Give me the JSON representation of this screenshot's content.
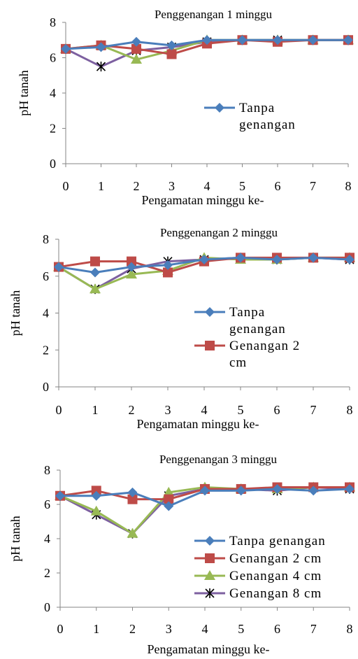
{
  "chart_data": [
    {
      "type": "line",
      "title": "Penggenangan 1 minggu",
      "xlabel": "Pengamatan minggu ke-",
      "ylabel": "pH tanah",
      "x": [
        0,
        1,
        2,
        3,
        4,
        5,
        6,
        7,
        8
      ],
      "ylim": [
        0,
        8
      ],
      "yticks": [
        0,
        2,
        4,
        6,
        8
      ],
      "grid": false,
      "legend_position": "right",
      "legend_entries": [
        "Tanpa genangan"
      ],
      "series": [
        {
          "name": "Tanpa genangan",
          "color": "#4a7ebb",
          "marker": "diamond",
          "values": [
            6.5,
            6.6,
            6.9,
            6.7,
            7.0,
            7.0,
            7.0,
            7.0,
            7.0
          ]
        },
        {
          "color": "#be4b48",
          "marker": "square",
          "values": [
            6.5,
            6.7,
            6.5,
            6.2,
            6.8,
            7.0,
            6.9,
            7.0,
            7.0
          ]
        },
        {
          "color": "#98b954",
          "marker": "triangle",
          "values": [
            6.5,
            6.7,
            5.9,
            6.4,
            7.0,
            7.0,
            7.0,
            7.0,
            7.0
          ]
        },
        {
          "color": "#7d60a0",
          "marker": "star",
          "values": [
            6.5,
            5.5,
            6.4,
            6.6,
            6.9,
            7.0,
            7.0,
            7.0,
            7.0
          ]
        }
      ]
    },
    {
      "type": "line",
      "title": "Penggenangan 2 minggu",
      "xlabel": "Pengamatan minggu ke-",
      "ylabel": "pH tanah",
      "x": [
        0,
        1,
        2,
        3,
        4,
        5,
        6,
        7,
        8
      ],
      "ylim": [
        0,
        8
      ],
      "yticks": [
        0,
        2,
        4,
        6,
        8
      ],
      "grid": false,
      "legend_position": "right",
      "legend_entries": [
        "Tanpa genangan",
        "Genangan 2 cm"
      ],
      "series": [
        {
          "name": "Tanpa genangan",
          "color": "#4a7ebb",
          "marker": "diamond",
          "values": [
            6.5,
            6.2,
            6.5,
            6.6,
            6.9,
            7.0,
            6.9,
            7.0,
            6.9
          ]
        },
        {
          "name": "Genangan 2 cm",
          "color": "#be4b48",
          "marker": "square",
          "values": [
            6.5,
            6.8,
            6.8,
            6.2,
            6.8,
            7.0,
            7.0,
            7.0,
            7.0
          ]
        },
        {
          "color": "#98b954",
          "marker": "triangle",
          "values": [
            6.5,
            5.3,
            6.1,
            6.3,
            7.0,
            6.9,
            6.9,
            7.0,
            7.0
          ]
        },
        {
          "color": "#7d60a0",
          "marker": "star",
          "values": [
            6.5,
            5.3,
            6.4,
            6.8,
            6.9,
            7.0,
            6.9,
            7.0,
            6.9
          ]
        }
      ]
    },
    {
      "type": "line",
      "title": "Penggenangan 3 minggu",
      "xlabel": "Pengamatan minggu ke-",
      "ylabel": "pH tanah",
      "x": [
        0,
        1,
        2,
        3,
        4,
        5,
        6,
        7,
        8
      ],
      "ylim": [
        0,
        8
      ],
      "yticks": [
        0,
        2,
        4,
        6,
        8
      ],
      "grid": false,
      "legend_position": "bottom-right",
      "legend_entries": [
        "Tanpa genangan",
        "Genangan 2 cm",
        "Genangan 4 cm",
        "Genangan 8 cm"
      ],
      "series": [
        {
          "name": "Tanpa genangan",
          "color": "#4a7ebb",
          "marker": "diamond",
          "values": [
            6.5,
            6.5,
            6.7,
            5.9,
            6.8,
            6.8,
            6.9,
            6.8,
            6.9
          ]
        },
        {
          "name": "Genangan 2 cm",
          "color": "#be4b48",
          "marker": "square",
          "values": [
            6.5,
            6.8,
            6.3,
            6.3,
            6.9,
            6.9,
            7.0,
            7.0,
            7.0
          ]
        },
        {
          "name": "Genangan 4 cm",
          "color": "#98b954",
          "marker": "triangle",
          "values": [
            6.5,
            5.6,
            4.3,
            6.7,
            7.0,
            6.9,
            6.9,
            7.0,
            7.0
          ]
        },
        {
          "name": "Genangan 8 cm",
          "color": "#7d60a0",
          "marker": "star",
          "values": [
            6.5,
            5.4,
            4.3,
            6.5,
            6.9,
            6.9,
            6.8,
            7.0,
            6.9
          ]
        }
      ]
    }
  ]
}
